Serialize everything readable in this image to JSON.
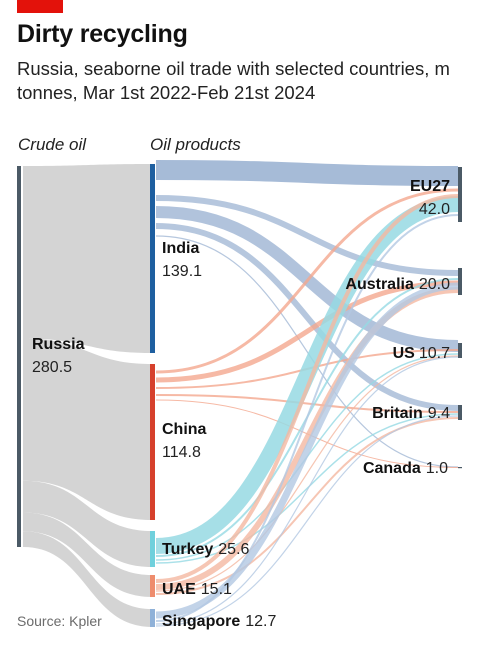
{
  "header": {
    "title": "Dirty recycling",
    "subtitle": "Russia, seaborne oil trade with selected countries, m tonnes, Mar 1st 2022-Feb 21st 2024"
  },
  "footer": {
    "source": "Source: Kpler"
  },
  "chart_data": {
    "type": "sankey",
    "column_headers": [
      "Crude oil",
      "Oil products"
    ],
    "source": {
      "name": "Russia",
      "value": "280.5"
    },
    "intermediaries": [
      {
        "name": "India",
        "value": "139.1"
      },
      {
        "name": "China",
        "value": "114.8"
      },
      {
        "name": "Turkey",
        "value": "25.6"
      },
      {
        "name": "UAE",
        "value": "15.1"
      },
      {
        "name": "Singapore",
        "value": "12.7"
      }
    ],
    "destinations": [
      {
        "name": "EU27",
        "value": "42.0"
      },
      {
        "name": "Australia",
        "value": "20.0"
      },
      {
        "name": "US",
        "value": "10.7"
      },
      {
        "name": "Britain",
        "value": "9.4"
      },
      {
        "name": "Canada",
        "value": "1.0"
      }
    ],
    "colors": {
      "russia_node": "#4b5a66",
      "russia_flow": "#d4d4d4",
      "India": "#1e5fa0",
      "China": "#d6402c",
      "Turkey": "#6fd0dc",
      "UAE": "#ee8c6d",
      "Singapore": "#8fb1d8",
      "destination_node": "#4b5a66",
      "flow_india": "#97afd0",
      "flow_china": "#f4a78e",
      "flow_turkey": "#96d9e3",
      "flow_uae": "#f4b8a1",
      "flow_singapore": "#b3c8e2"
    }
  }
}
